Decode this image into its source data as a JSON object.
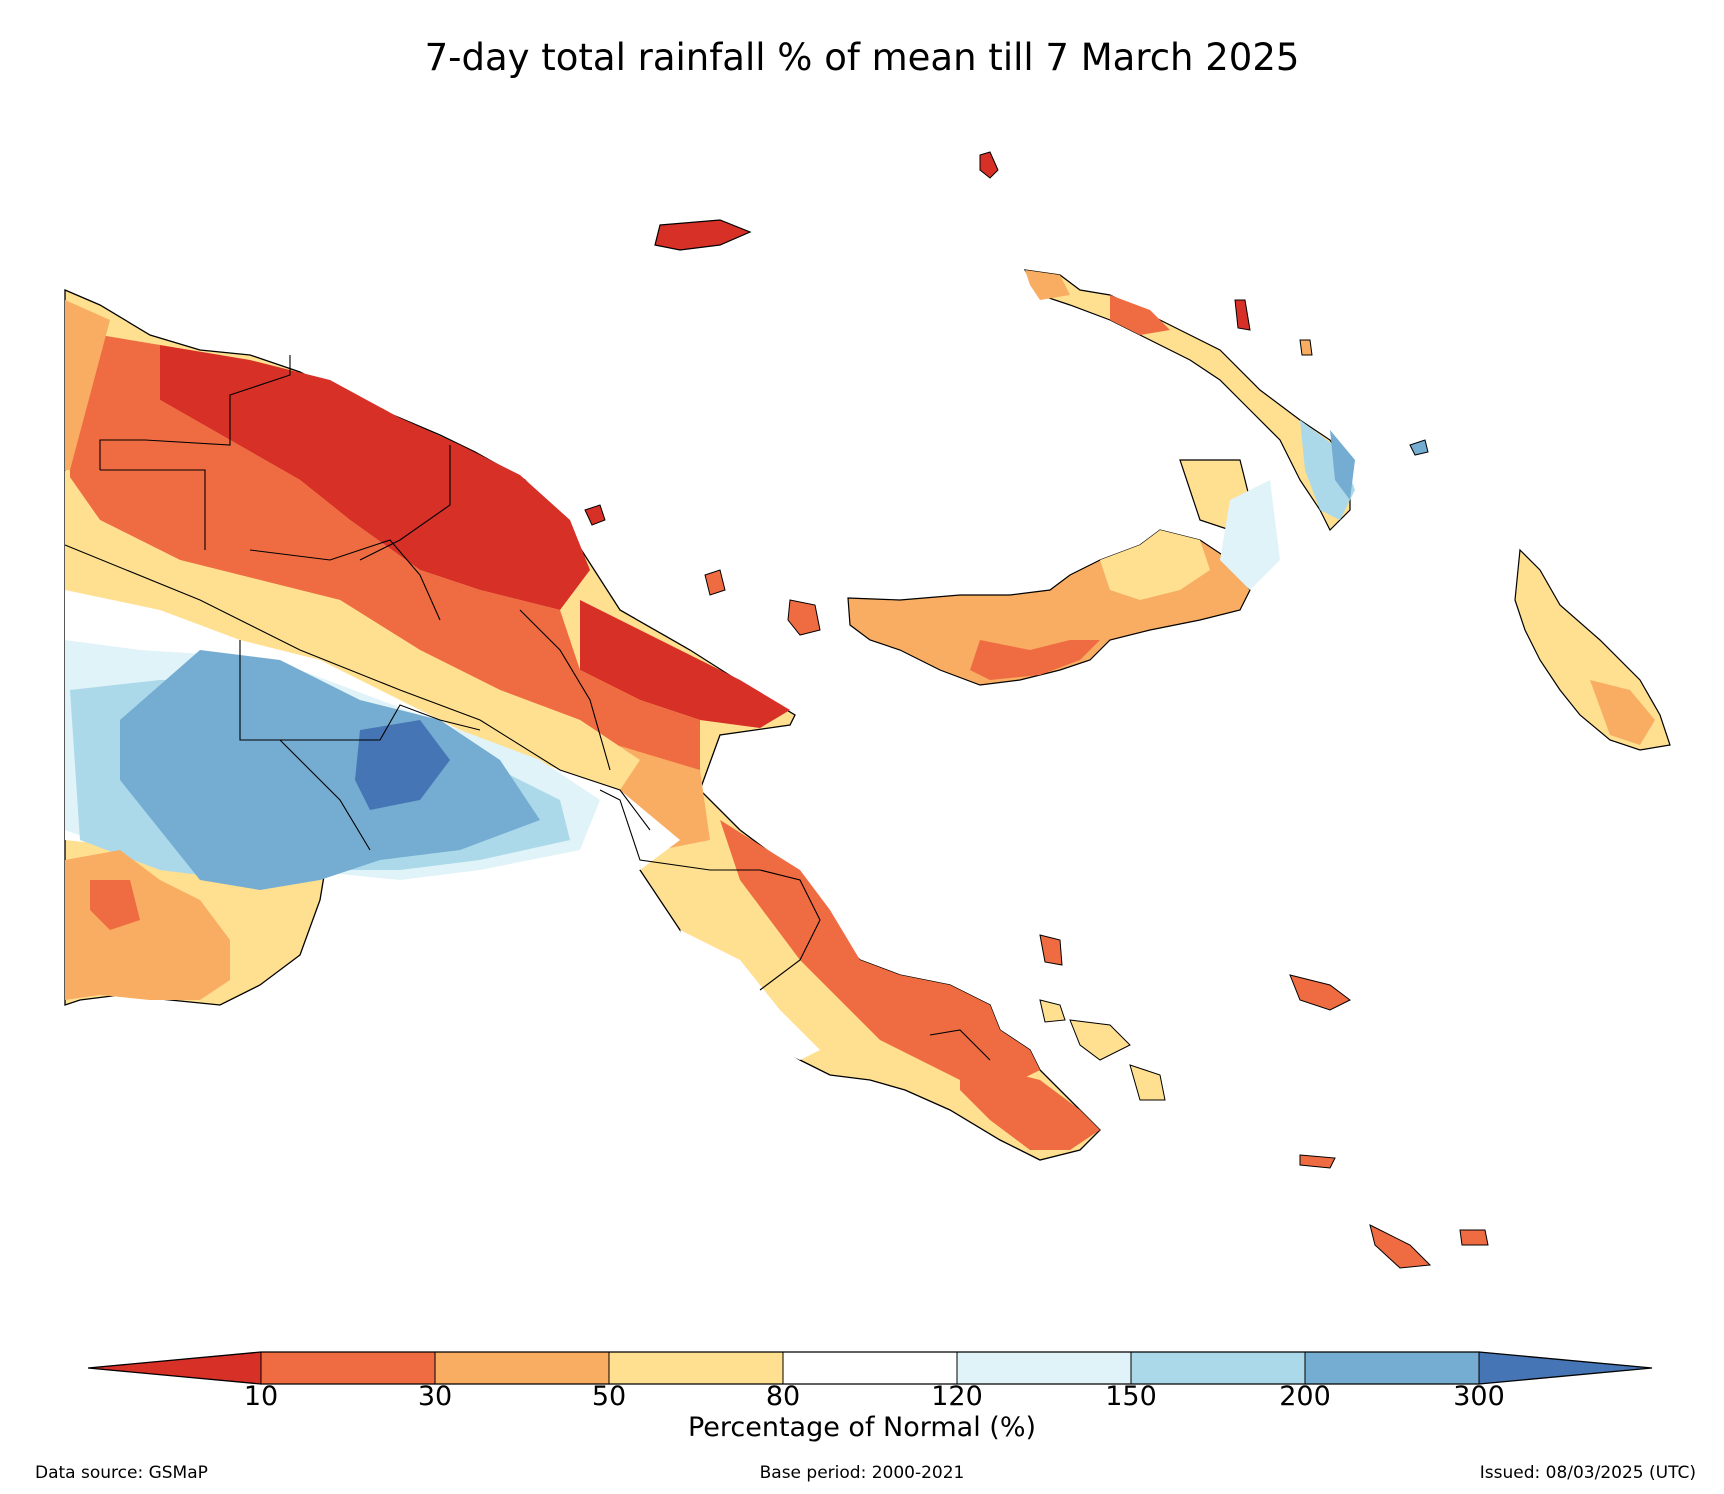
{
  "title": "7-day total rainfall % of mean till 7 March 2025",
  "colorbar": {
    "label": "Percentage of Normal (%)",
    "ticks": [
      "10",
      "30",
      "50",
      "80",
      "120",
      "150",
      "200",
      "300"
    ],
    "bins": [
      {
        "range": "<10",
        "color": "#d73027"
      },
      {
        "range": "10-30",
        "color": "#ef6c43"
      },
      {
        "range": "30-50",
        "color": "#f8ad62"
      },
      {
        "range": "50-80",
        "color": "#fee090"
      },
      {
        "range": "80-120",
        "color": "#ffffff"
      },
      {
        "range": "120-150",
        "color": "#e0f3f8"
      },
      {
        "range": "150-200",
        "color": "#abd9e9"
      },
      {
        "range": "200-300",
        "color": "#74add1"
      },
      {
        "range": ">300",
        "color": "#4575b4"
      }
    ]
  },
  "footer": {
    "source": "Data source: GSMaP",
    "base_period": "Base period: 2000-2021",
    "issued": "Issued: 08/03/2025 (UTC)"
  }
}
